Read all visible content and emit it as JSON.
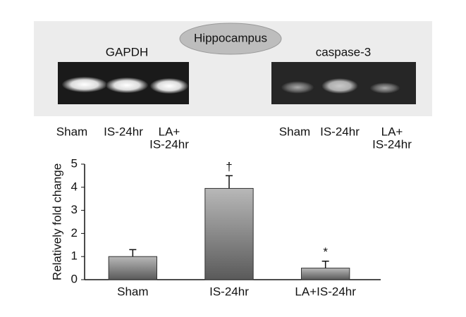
{
  "panel": {
    "label": "Hippocampus",
    "gels": [
      {
        "name": "GAPDH",
        "lanes": [
          [
            "Sham"
          ],
          [
            "IS-24hr"
          ],
          [
            "LA+",
            "IS-24hr"
          ]
        ]
      },
      {
        "name": "caspase-3",
        "lanes": [
          [
            "Sham"
          ],
          [
            "IS-24hr"
          ],
          [
            "LA+",
            "IS-24hr"
          ]
        ]
      }
    ]
  },
  "chart_data": {
    "type": "bar",
    "ylabel": "Relatively fold change",
    "categories": [
      "Sham",
      "IS-24hr",
      "LA+IS-24hr"
    ],
    "values": [
      1.0,
      3.95,
      0.5
    ],
    "errors": [
      0.3,
      0.55,
      0.3
    ],
    "annotations": [
      {
        "text": "†",
        "category": "IS-24hr"
      },
      {
        "text": "*",
        "category": "LA+IS-24hr"
      }
    ],
    "color": "#5a5a5a",
    "ylim": [
      0,
      5
    ],
    "yticks": [
      0,
      1,
      2,
      3,
      4,
      5
    ],
    "grid": false
  }
}
